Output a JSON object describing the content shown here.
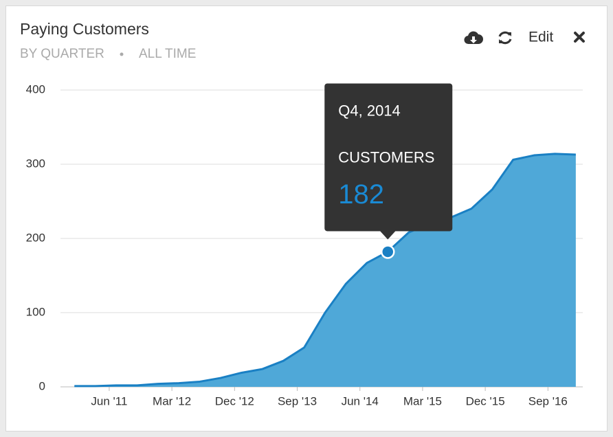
{
  "chart_data": {
    "type": "area",
    "title": "Paying Customers",
    "subtitle": [
      "BY QUARTER",
      "ALL TIME"
    ],
    "edit_label": "Edit",
    "x": [
      "2011-01",
      "2011-04",
      "2011-07",
      "2011-10",
      "2012-01",
      "2012-04",
      "2012-07",
      "2012-10",
      "2013-01",
      "2013-04",
      "2013-07",
      "2013-10",
      "2014-01",
      "2014-04",
      "2014-07",
      "2014-10",
      "2015-01",
      "2015-04",
      "2015-07",
      "2015-10",
      "2016-01",
      "2016-04",
      "2016-07",
      "2016-10",
      "2017-01"
    ],
    "values": [
      1,
      1,
      2,
      2,
      4,
      5,
      7,
      12,
      19,
      24,
      35,
      53,
      100,
      139,
      167,
      182,
      208,
      220,
      228,
      240,
      266,
      306,
      312,
      314,
      313
    ],
    "color": "#1a80c4",
    "fill": "#4fa8d8",
    "xlim": [
      "2010-11",
      "2017-02"
    ],
    "xticks": [
      {
        "value": "2011-06",
        "label": "Jun '11"
      },
      {
        "value": "2012-03",
        "label": "Mar '12"
      },
      {
        "value": "2012-12",
        "label": "Dec '12"
      },
      {
        "value": "2013-09",
        "label": "Sep '13"
      },
      {
        "value": "2014-06",
        "label": "Jun '14"
      },
      {
        "value": "2015-03",
        "label": "Mar '15"
      },
      {
        "value": "2015-12",
        "label": "Dec '15"
      },
      {
        "value": "2016-09",
        "label": "Sep '16"
      }
    ],
    "ylim": [
      0,
      400
    ],
    "yticks": [
      0,
      100,
      200,
      300,
      400
    ],
    "grid": true,
    "tooltip": {
      "index": 15,
      "period": "Q4, 2014",
      "series_label": "CUSTOMERS"
    }
  }
}
